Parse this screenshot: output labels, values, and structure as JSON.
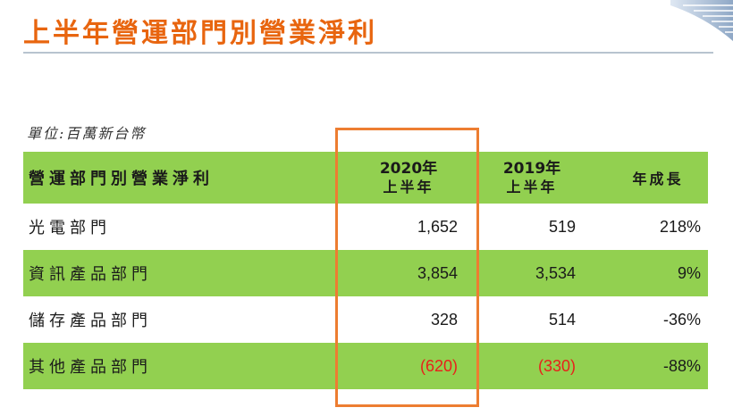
{
  "title": "上半年營運部門別營業淨利",
  "unit_label": "單位:百萬新台幣",
  "table": {
    "headers": {
      "name": "營運部門別營業淨利",
      "col_2020_year": "2020年",
      "col_2020_sub": "上半年",
      "col_2019_year": "2019年",
      "col_2019_sub": "上半年",
      "growth": "年成長"
    },
    "rows": [
      {
        "name": "光電部門",
        "v2020": "1,652",
        "v2019": "519",
        "growth": "218%"
      },
      {
        "name": "資訊產品部門",
        "v2020": "3,854",
        "v2019": "3,534",
        "growth": "9%"
      },
      {
        "name": "儲存產品部門",
        "v2020": "328",
        "v2019": "514",
        "growth": "-36%"
      },
      {
        "name": "其他產品部門",
        "v2020": "(620)",
        "v2019": "(330)",
        "growth": "-88%"
      }
    ]
  },
  "colors": {
    "title": "#e8650f",
    "row_green": "#92d050",
    "highlight": "#ed7d31",
    "negative": "#e8201a"
  }
}
